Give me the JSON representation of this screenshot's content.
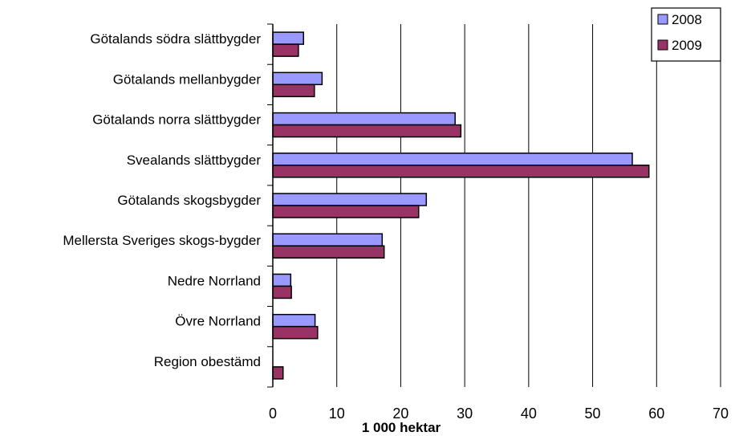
{
  "chart_data": {
    "type": "bar",
    "orientation": "horizontal",
    "categories": [
      "Götalands södra slättbygder",
      "Götalands mellanbygder",
      "Götalands norra slättbygder",
      "Svealands slättbygder",
      "Götalands skogsbygder",
      "Mellersta Sveriges skogs-bygder",
      "Nedre Norrland",
      "Övre Norrland",
      "Region obestämd"
    ],
    "series": [
      {
        "name": "2008",
        "color": "#9999ff",
        "values": [
          4.8,
          7.7,
          28.5,
          56.2,
          24.0,
          17.1,
          2.8,
          6.6,
          0.0
        ]
      },
      {
        "name": "2009",
        "color": "#993366",
        "values": [
          4.0,
          6.5,
          29.4,
          58.8,
          22.8,
          17.4,
          2.9,
          7.0,
          1.6
        ]
      }
    ],
    "xlabel": "1 000 hektar",
    "xlim": [
      0,
      70
    ],
    "xticks": [
      "0",
      "10",
      "20",
      "30",
      "40",
      "50",
      "60",
      "70"
    ],
    "grid": true,
    "legend_position": "top-right"
  }
}
